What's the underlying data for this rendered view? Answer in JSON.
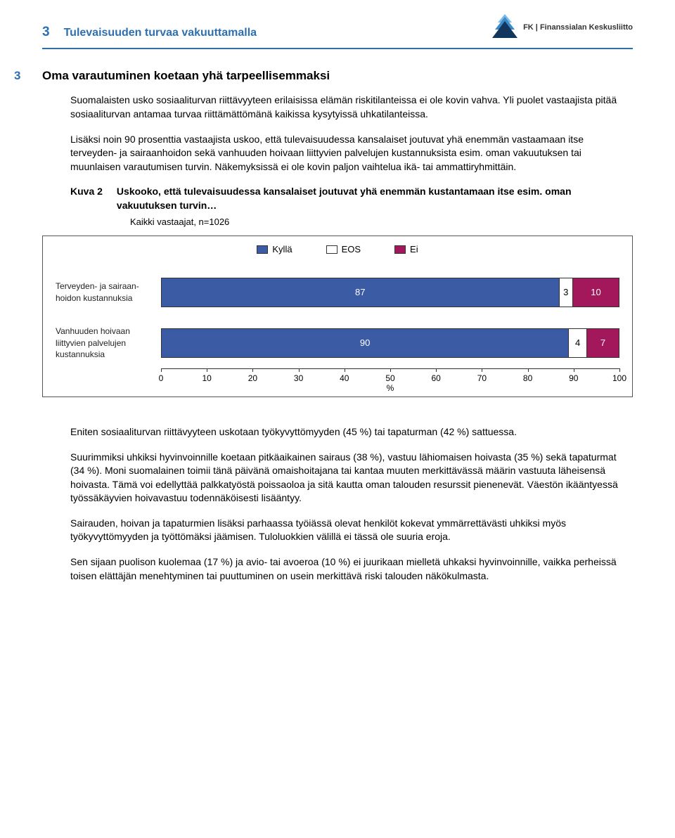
{
  "header": {
    "page_number": "3",
    "doc_title": "Tulevaisuuden turvaa vakuuttamalla",
    "org_prefix": "FK",
    "org_name": "Finanssialan Keskusliitto",
    "logo_colors": {
      "light": "#7bb9e8",
      "mid": "#3a8ac5",
      "dark": "#13365f"
    }
  },
  "section": {
    "number": "3",
    "title": "Oma varautuminen koetaan yhä tarpeellisemmaksi"
  },
  "paragraphs": {
    "p1": "Suomalaisten usko sosiaaliturvan riittävyyteen erilaisissa elämän riskitilanteissa ei ole kovin vahva. Yli puolet vastaajista pitää sosiaaliturvan antamaa turvaa riittämättömänä kaikissa kysytyissä uhkatilanteissa.",
    "p2": "Lisäksi noin 90 prosenttia vastaajista uskoo, että tulevaisuudessa kansalaiset joutuvat yhä enemmän vastaamaan itse terveyden- ja sairaanhoidon sekä vanhuuden hoivaan liittyvien palvelujen kustannuksista esim. oman vakuutuksen tai muunlaisen varautumisen turvin. Näkemyksissä ei ole kovin paljon vaihtelua ikä- tai ammattiryhmittäin.",
    "p3": "Eniten sosiaaliturvan riittävyyteen uskotaan työkyvyttömyyden (45 %) tai tapaturman (42 %) sattuessa.",
    "p4": "Suurimmiksi uhkiksi hyvinvoinnille koetaan pitkäaikainen sairaus (38 %), vastuu lähiomaisen hoivasta (35 %) sekä tapaturmat (34 %). Moni suomalainen toimii tänä päivänä omaishoitajana tai kantaa muuten merkittävässä määrin vastuuta läheisensä hoivasta. Tämä voi edellyttää palkkatyöstä poissaoloa ja sitä kautta oman talouden resurssit pienenevät. Väestön ikääntyessä työssäkäyvien hoivavastuu todennäköisesti lisääntyy.",
    "p5": "Sairauden, hoivan ja tapaturmien lisäksi parhaassa työiässä olevat henkilöt kokevat ymmärrettävästi uhkiksi myös työkyvyttömyyden ja työttömäksi jäämisen. Tuloluokkien välillä ei tässä ole suuria eroja.",
    "p6": "Sen sijaan puolison kuolemaa (17 %) ja avio- tai avoeroa (10 %) ei juurikaan mielletä uhkaksi hyvinvoinnille, vaikka perheissä toisen elättäjän menehtyminen tai puuttuminen on usein merkittävä riski talouden näkökulmasta."
  },
  "figure": {
    "label": "Kuva 2",
    "title": "Uskooko, että tulevaisuudessa kansalaiset joutuvat yhä enemmän kustantamaan itse esim. oman vakuutuksen turvin…",
    "subtitle": "Kaikki vastaajat, n=1026"
  },
  "chart": {
    "type": "stacked-bar-horizontal",
    "legend": [
      {
        "label": "Kyllä",
        "color": "#3b5ba5"
      },
      {
        "label": "EOS",
        "color": "#ffffff"
      },
      {
        "label": "Ei",
        "color": "#a2185b"
      }
    ],
    "categories": [
      {
        "label": "Terveyden- ja sairaan-\nhoidon kustannuksia",
        "values": [
          87,
          3,
          10
        ]
      },
      {
        "label": "Vanhuuden hoivaan liittyvien palvelujen kustannuksia",
        "values": [
          90,
          4,
          7
        ]
      }
    ],
    "xaxis": {
      "min": 0,
      "max": 100,
      "step": 10,
      "title": "%"
    },
    "colors": {
      "kylla": "#3b5ba5",
      "eos": "#ffffff",
      "ei": "#a2185b"
    },
    "border_color": "#333333",
    "font_size_labels": 12,
    "font_size_values": 13
  }
}
